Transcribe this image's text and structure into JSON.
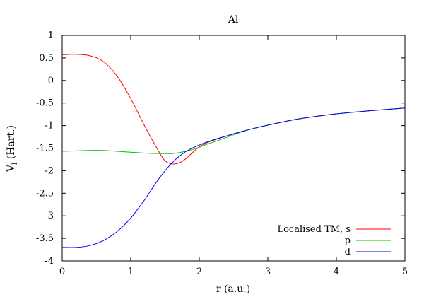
{
  "chart_data": {
    "type": "line",
    "title": "Al",
    "xlabel": "r (a.u.)",
    "ylabel": {
      "main": "V",
      "subscript": "l",
      "suffix": " (Hart.)"
    },
    "xlim": [
      0,
      5
    ],
    "ylim": [
      -4,
      1
    ],
    "x_ticks": [
      0,
      1,
      2,
      3,
      4,
      5
    ],
    "x_tick_labels": [
      "0",
      "1",
      "2",
      "3",
      "4",
      "5"
    ],
    "y_ticks": [
      1,
      0.5,
      0,
      -0.5,
      -1,
      -1.5,
      -2,
      -2.5,
      -3,
      -3.5,
      -4
    ],
    "y_tick_labels": [
      "1",
      "0.5",
      "0",
      "-0.5",
      "-1",
      "-1.5",
      "-2",
      "-2.5",
      "-3",
      "-3.5",
      "-4"
    ],
    "grid": false,
    "legend_position": "bottom-right",
    "series": [
      {
        "name": "Localised TM, s",
        "color": "#ff0000",
        "x": [
          0,
          0.2,
          0.4,
          0.6,
          0.8,
          1.0,
          1.2,
          1.4,
          1.5,
          1.6,
          1.7,
          1.8,
          1.9,
          2.0,
          2.1,
          2.2,
          2.4,
          2.6,
          2.8,
          3.0,
          3.25,
          3.5,
          4.0,
          4.5,
          5.0
        ],
        "y": [
          0.57,
          0.58,
          0.55,
          0.42,
          0.1,
          -0.4,
          -1.0,
          -1.55,
          -1.78,
          -1.85,
          -1.83,
          -1.74,
          -1.6,
          -1.47,
          -1.39,
          -1.33,
          -1.23,
          -1.14,
          -1.06,
          -0.99,
          -0.91,
          -0.84,
          -0.74,
          -0.67,
          -0.61
        ]
      },
      {
        "name": "p",
        "color": "#00c800",
        "x": [
          0,
          0.2,
          0.4,
          0.6,
          0.8,
          1.0,
          1.2,
          1.4,
          1.5,
          1.6,
          1.7,
          1.8,
          1.9,
          2.0,
          2.1,
          2.2,
          2.4,
          2.6,
          2.8,
          3.0,
          3.25,
          3.5,
          4.0,
          4.5,
          5.0
        ],
        "y": [
          -1.57,
          -1.56,
          -1.55,
          -1.55,
          -1.57,
          -1.59,
          -1.61,
          -1.62,
          -1.62,
          -1.62,
          -1.6,
          -1.57,
          -1.53,
          -1.48,
          -1.42,
          -1.37,
          -1.26,
          -1.15,
          -1.06,
          -0.99,
          -0.91,
          -0.84,
          -0.74,
          -0.67,
          -0.61
        ]
      },
      {
        "name": "d",
        "color": "#0000ff",
        "x": [
          0,
          0.2,
          0.4,
          0.6,
          0.8,
          1.0,
          1.2,
          1.4,
          1.6,
          1.8,
          2.0,
          2.2,
          2.4,
          2.6,
          2.8,
          3.0,
          3.25,
          3.5,
          4.0,
          4.5,
          5.0
        ],
        "y": [
          -3.7,
          -3.7,
          -3.66,
          -3.55,
          -3.35,
          -3.05,
          -2.65,
          -2.2,
          -1.83,
          -1.58,
          -1.43,
          -1.32,
          -1.23,
          -1.14,
          -1.06,
          -0.99,
          -0.91,
          -0.84,
          -0.74,
          -0.67,
          -0.61
        ]
      }
    ]
  }
}
